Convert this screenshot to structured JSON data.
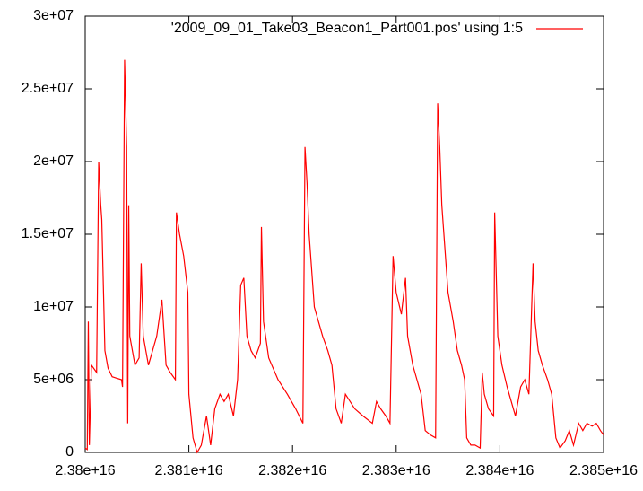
{
  "chart_data": {
    "type": "line",
    "series": [
      {
        "name": "'2009_09_01_Take03_Beacon1_Part001.pos' using 1:5",
        "color": "#ff0000",
        "x": [
          2.38e+16,
          2.38002e+16,
          2.38003e+16,
          2.38004e+16,
          2.38006e+16,
          2.38011e+16,
          2.38013e+16,
          2.38015e+16,
          2.38016e+16,
          2.38019e+16,
          2.38022e+16,
          2.38026e+16,
          2.38035e+16,
          2.38036e+16,
          2.38038e+16,
          2.3804e+16,
          2.38041e+16,
          2.38042e+16,
          2.38043e+16,
          2.38048e+16,
          2.38052e+16,
          2.38054e+16,
          2.38056e+16,
          2.38061e+16,
          2.38065e+16,
          2.38069e+16,
          2.38074e+16,
          2.38078e+16,
          2.38082e+16,
          2.38087e+16,
          2.38088e+16,
          2.38091e+16,
          2.38095e+16,
          2.38099e+16,
          2.381e+16,
          2.38104e+16,
          2.38108e+16,
          2.38112e+16,
          2.38117e+16,
          2.38121e+16,
          2.38125e+16,
          2.3813e+16,
          2.38134e+16,
          2.38138e+16,
          2.38143e+16,
          2.38147e+16,
          2.3815e+16,
          2.38153e+16,
          2.38156e+16,
          2.3816e+16,
          2.38164e+16,
          2.38169e+16,
          2.3817e+16,
          2.38172e+16,
          2.38177e+16,
          2.38186e+16,
          2.38195e+16,
          2.38203e+16,
          2.3821e+16,
          2.38212e+16,
          2.38214e+16,
          2.38216e+16,
          2.38221e+16,
          2.38225e+16,
          2.38229e+16,
          2.38234e+16,
          2.38238e+16,
          2.38242e+16,
          2.38247e+16,
          2.38251e+16,
          2.3826e+16,
          2.38268e+16,
          2.38277e+16,
          2.38281e+16,
          2.38285e+16,
          2.3829e+16,
          2.38294e+16,
          2.38297e+16,
          2.383e+16,
          2.38305e+16,
          2.38309e+16,
          2.38311e+16,
          2.38316e+16,
          2.3832e+16,
          2.38324e+16,
          2.38328e+16,
          2.38333e+16,
          2.38338e+16,
          2.3834e+16,
          2.38342e+16,
          2.38344e+16,
          2.3835e+16,
          2.38355e+16,
          2.38359e+16,
          2.38363e+16,
          2.38366e+16,
          2.38368e+16,
          2.38372e+16,
          2.38376e+16,
          2.38381e+16,
          2.38383e+16,
          2.38385e+16,
          2.38389e+16,
          2.38394e+16,
          2.38395e+16,
          2.38398e+16,
          2.38402e+16,
          2.38407e+16,
          2.38409e+16,
          2.38413e+16,
          2.38415e+16,
          2.3842e+16,
          2.38424e+16,
          2.38428e+16,
          2.38432e+16,
          2.38434e+16,
          2.38437e+16,
          2.38441e+16,
          2.38446e+16,
          2.3845e+16,
          2.38454e+16,
          2.38458e+16,
          2.38463e+16,
          2.38467e+16,
          2.38471e+16,
          2.38476e+16,
          2.3848e+16,
          2.38484e+16,
          2.38489e+16,
          2.38493e+16,
          2.38497e+16,
          2.385e+16
        ],
        "values": [
          300000,
          200000,
          9000000,
          500000,
          6000000,
          5500000,
          20000000,
          17000000,
          16000000,
          7000000,
          5800000,
          5200000,
          5000000,
          4500000,
          27000000,
          21000000,
          2000000,
          17000000,
          8000000,
          6000000,
          6500000,
          13000000,
          8000000,
          6000000,
          7000000,
          8000000,
          10500000,
          6000000,
          5500000,
          5000000,
          16500000,
          15000000,
          13500000,
          11000000,
          4000000,
          1000000,
          0,
          500000,
          2500000,
          500000,
          3000000,
          4000000,
          3500000,
          4000000,
          2500000,
          5000000,
          11500000,
          12000000,
          8000000,
          7000000,
          6500000,
          7500000,
          15500000,
          9000000,
          6500000,
          5000000,
          4000000,
          3000000,
          2000000,
          21000000,
          18500000,
          15000000,
          10000000,
          9000000,
          8000000,
          7000000,
          6000000,
          3000000,
          2000000,
          4000000,
          3000000,
          2500000,
          2000000,
          3500000,
          3000000,
          2500000,
          2000000,
          13500000,
          11000000,
          9500000,
          12000000,
          8000000,
          6000000,
          5000000,
          4000000,
          1500000,
          1200000,
          1000000,
          24000000,
          21000000,
          17000000,
          11000000,
          9000000,
          7000000,
          6000000,
          5000000,
          1000000,
          500000,
          500000,
          300000,
          5500000,
          4000000,
          3000000,
          2500000,
          16500000,
          8000000,
          6000000,
          4500000,
          4000000,
          3000000,
          2500000,
          4500000,
          5000000,
          4000000,
          13000000,
          9000000,
          7000000,
          6000000,
          5000000,
          4000000,
          1000000,
          300000,
          800000,
          1500000,
          500000,
          2000000,
          1500000,
          2000000,
          1800000,
          2000000,
          1500000,
          1200000
        ]
      }
    ],
    "xlim": [
      2.38e+16,
      2.385e+16
    ],
    "xticks": [
      {
        "value": 2.38e+16,
        "label": "2.38e+16"
      },
      {
        "value": 2.381e+16,
        "label": "2.381e+16"
      },
      {
        "value": 2.382e+16,
        "label": "2.382e+16"
      },
      {
        "value": 2.383e+16,
        "label": "2.383e+16"
      },
      {
        "value": 2.384e+16,
        "label": "2.384e+16"
      },
      {
        "value": 2.385e+16,
        "label": "2.385e+16"
      }
    ],
    "ylim": [
      0,
      30000000
    ],
    "yticks": [
      0,
      {
        "value": 5000000,
        "label": "5e+06"
      },
      {
        "value": 10000000,
        "label": "1e+07"
      },
      {
        "value": 15000000,
        "label": "1.5e+07"
      },
      {
        "value": 20000000,
        "label": "2e+07"
      },
      {
        "value": 25000000,
        "label": "2.5e+07"
      },
      {
        "value": 30000000,
        "label": "3e+07"
      }
    ],
    "grid": false,
    "legend": "top-right"
  }
}
